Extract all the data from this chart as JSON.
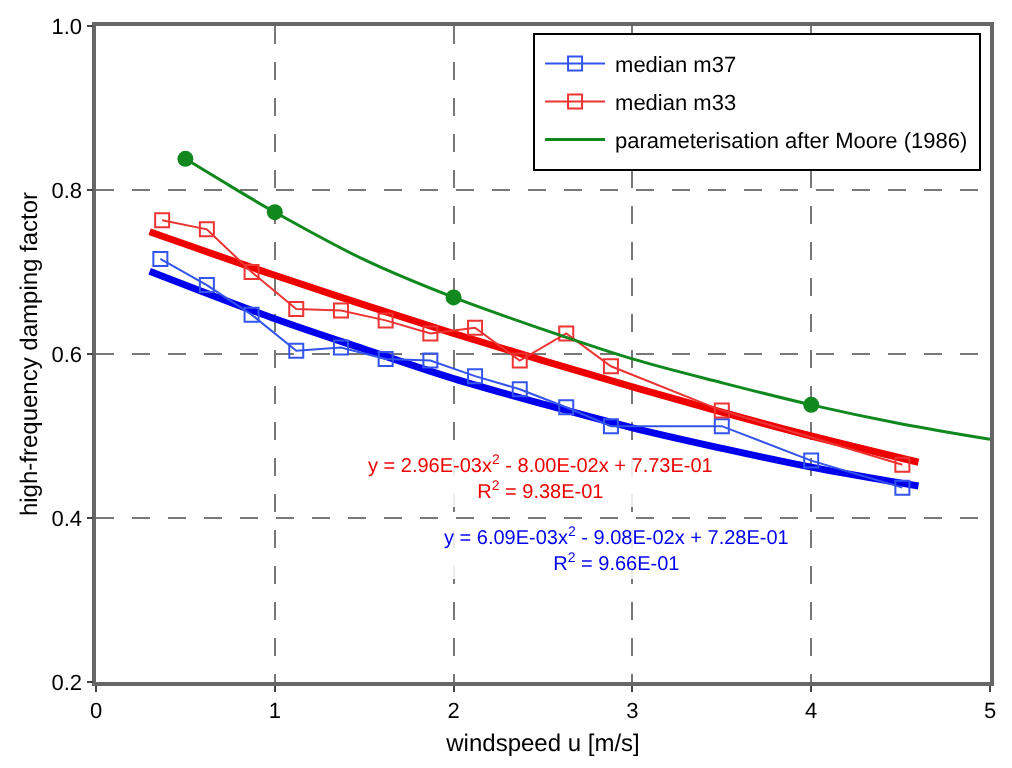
{
  "chart_data": {
    "type": "line",
    "xlabel": "windspeed u [m/s]",
    "ylabel": "high-frequency damping factor",
    "xlim": [
      0,
      5
    ],
    "xticks": [
      0,
      1,
      2,
      3,
      4,
      5
    ],
    "ylim": [
      0.2,
      1.0
    ],
    "yticks": [
      {
        "value": 0.2,
        "label": "0.2"
      },
      {
        "value": 0.4,
        "label": "0.4"
      },
      {
        "value": 0.6,
        "label": "0.6"
      },
      {
        "value": 0.8,
        "label": "0.8"
      },
      {
        "value": 1.0,
        "label": "1.0"
      }
    ],
    "grid": true,
    "legend": "top right",
    "line_style": "solid",
    "series": [
      {
        "name": "median m37",
        "color": "#3355ee",
        "marker": "square",
        "x": [
          0.36,
          0.62,
          0.87,
          1.12,
          1.37,
          1.62,
          1.87,
          2.12,
          2.37,
          2.63,
          2.88,
          3.5,
          4.0,
          4.51
        ],
        "values": [
          0.716,
          0.684,
          0.648,
          0.604,
          0.608,
          0.594,
          0.592,
          0.573,
          0.557,
          0.535,
          0.512,
          0.512,
          0.47,
          0.437
        ]
      },
      {
        "name": "median m33",
        "color": "#ee3333",
        "marker": "square",
        "x": [
          0.37,
          0.62,
          0.87,
          1.12,
          1.37,
          1.62,
          1.87,
          2.12,
          2.37,
          2.63,
          2.88,
          3.5,
          4.51
        ],
        "values": [
          0.763,
          0.752,
          0.7,
          0.655,
          0.653,
          0.641,
          0.625,
          0.632,
          0.592,
          0.625,
          0.585,
          0.531,
          0.465
        ]
      },
      {
        "name": "parameterisation after Moore (1986)",
        "color": "#11881e",
        "marker": "none",
        "x": [
          0.5,
          0.75,
          1,
          1.5,
          2,
          2.5,
          3,
          3.5,
          4,
          4.5,
          5
        ],
        "values": [
          0.838,
          0.805,
          0.773,
          0.715,
          0.669,
          0.63,
          0.594,
          0.565,
          0.538,
          0.515,
          0.496
        ]
      },
      {
        "type": "scatter",
        "color": "#11881e",
        "marker": "circle",
        "x": [
          0.5,
          1,
          2,
          4
        ],
        "values": [
          0.838,
          0.773,
          0.669,
          0.538
        ]
      },
      {
        "color": "#ee0000",
        "marker": "none",
        "x": [
          0.3,
          1,
          1.5,
          2,
          2.5,
          3,
          3.5,
          4,
          4.6
        ],
        "values": [
          0.749,
          0.696,
          0.66,
          0.625,
          0.592,
          0.56,
          0.529,
          0.5,
          0.468
        ]
      },
      {
        "color": "#0000ee",
        "marker": "none",
        "x": [
          0.3,
          1,
          1.5,
          2,
          2.5,
          3,
          3.5,
          4,
          4.6
        ],
        "values": [
          0.701,
          0.643,
          0.606,
          0.57,
          0.539,
          0.51,
          0.485,
          0.462,
          0.439
        ]
      }
    ],
    "annotations": [
      "y = 2.96E-03x$^{2}$ - 8.00E-02x + 7.73E-01\nR$^{2}$ = 9.38E-01",
      "y = 6.09E-03x$^{2}$ - 9.08E-02x + 7.28E-01\nR$^{2}$ = 9.66E-01"
    ]
  }
}
